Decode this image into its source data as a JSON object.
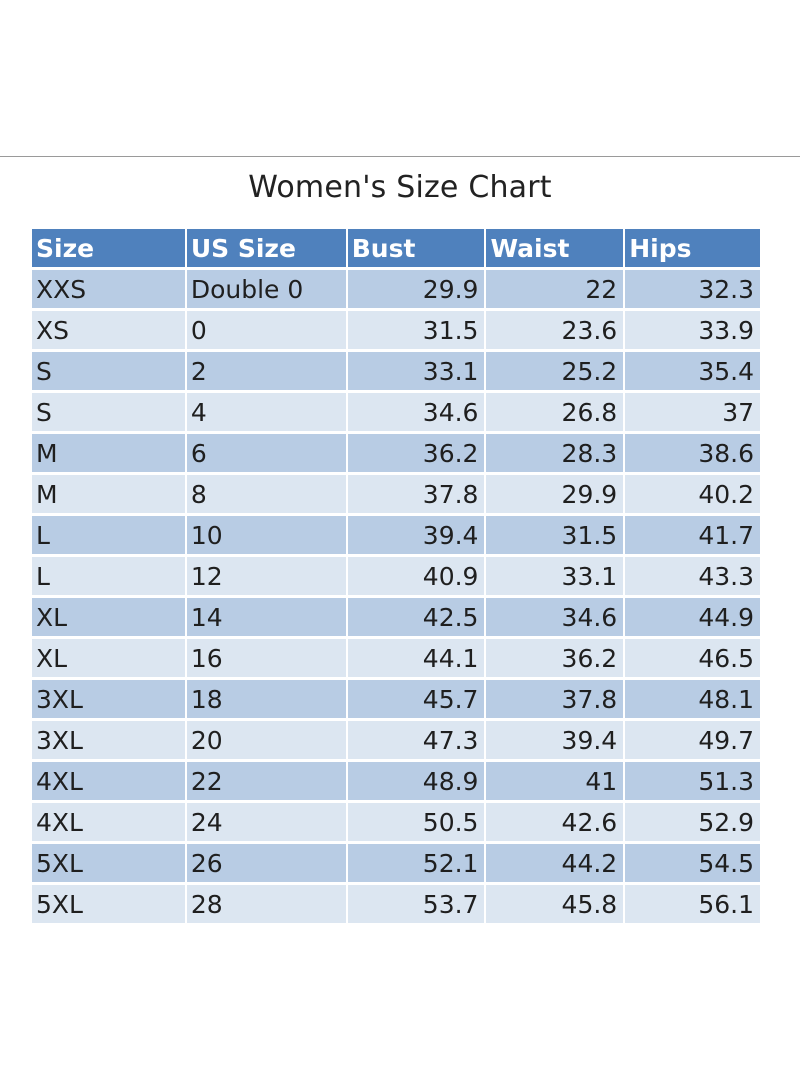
{
  "chart_data": {
    "type": "table",
    "title": "Women's Size Chart",
    "columns": [
      "Size",
      "US Size",
      "Bust",
      "Waist",
      "Hips"
    ],
    "rows": [
      [
        "XXS",
        "Double 0",
        "29.9",
        "22",
        "32.3"
      ],
      [
        "XS",
        "0",
        "31.5",
        "23.6",
        "33.9"
      ],
      [
        "S",
        "2",
        "33.1",
        "25.2",
        "35.4"
      ],
      [
        "S",
        "4",
        "34.6",
        "26.8",
        "37"
      ],
      [
        "M",
        "6",
        "36.2",
        "28.3",
        "38.6"
      ],
      [
        "M",
        "8",
        "37.8",
        "29.9",
        "40.2"
      ],
      [
        "L",
        "10",
        "39.4",
        "31.5",
        "41.7"
      ],
      [
        "L",
        "12",
        "40.9",
        "33.1",
        "43.3"
      ],
      [
        "XL",
        "14",
        "42.5",
        "34.6",
        "44.9"
      ],
      [
        "XL",
        "16",
        "44.1",
        "36.2",
        "46.5"
      ],
      [
        "3XL",
        "18",
        "45.7",
        "37.8",
        "48.1"
      ],
      [
        "3XL",
        "20",
        "47.3",
        "39.4",
        "49.7"
      ],
      [
        "4XL",
        "22",
        "48.9",
        "41",
        "51.3"
      ],
      [
        "4XL",
        "24",
        "50.5",
        "42.6",
        "52.9"
      ],
      [
        "5XL",
        "26",
        "52.1",
        "44.2",
        "54.5"
      ],
      [
        "5XL",
        "28",
        "53.7",
        "45.8",
        "56.1"
      ]
    ]
  },
  "colors": {
    "header_bg": "#4f81bd",
    "row_dark": "#b8cce4",
    "row_light": "#dce6f1"
  }
}
